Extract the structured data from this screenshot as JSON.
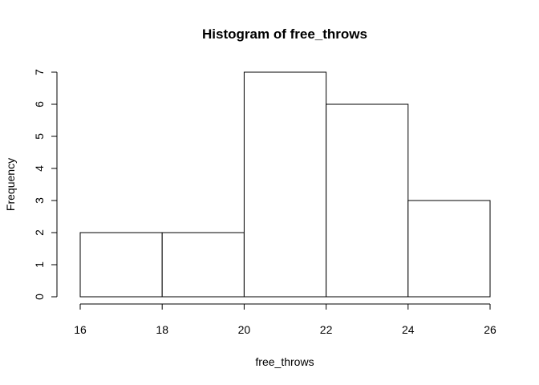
{
  "chart_data": {
    "type": "bar",
    "title": "Histogram of free_throws",
    "xlabel": "free_throws",
    "ylabel": "Frequency",
    "bins": [
      {
        "from": 16,
        "to": 18,
        "count": 2
      },
      {
        "from": 18,
        "to": 20,
        "count": 2
      },
      {
        "from": 20,
        "to": 22,
        "count": 7
      },
      {
        "from": 22,
        "to": 24,
        "count": 6
      },
      {
        "from": 24,
        "to": 26,
        "count": 3
      }
    ],
    "x_ticks": [
      16,
      18,
      20,
      22,
      24,
      26
    ],
    "y_ticks": [
      0,
      1,
      2,
      3,
      4,
      5,
      6,
      7
    ],
    "xlim": [
      16,
      26
    ],
    "ylim": [
      0,
      7
    ],
    "grid": false,
    "bar_fill": "#ffffff",
    "bar_stroke": "#000000"
  }
}
